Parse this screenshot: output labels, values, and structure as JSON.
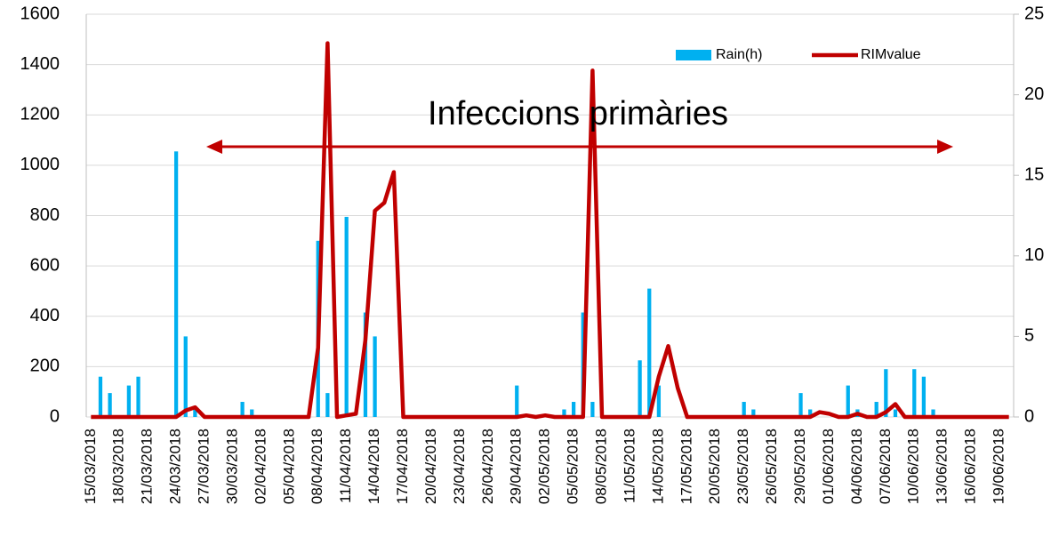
{
  "chart_data": {
    "type": "bar-line",
    "annotation": "Infeccions primàries",
    "categories": [
      "15/03/2018",
      null,
      null,
      "18/03/2018",
      null,
      null,
      "21/03/2018",
      null,
      null,
      "24/03/2018",
      null,
      null,
      "27/03/2018",
      null,
      null,
      "30/03/2018",
      null,
      null,
      "02/04/2018",
      null,
      null,
      "05/04/2018",
      null,
      null,
      "08/04/2018",
      null,
      null,
      "11/04/2018",
      null,
      null,
      "14/04/2018",
      null,
      null,
      "17/04/2018",
      null,
      null,
      "20/04/2018",
      null,
      null,
      "23/04/2018",
      null,
      null,
      "26/04/2018",
      null,
      null,
      "29/04/2018",
      null,
      null,
      "02/05/2018",
      null,
      null,
      "05/05/2018",
      null,
      null,
      "08/05/2018",
      null,
      null,
      "11/05/2018",
      null,
      null,
      "14/05/2018",
      null,
      null,
      "17/05/2018",
      null,
      null,
      "20/05/2018",
      null,
      null,
      "23/05/2018",
      null,
      null,
      "26/05/2018",
      null,
      null,
      "29/05/2018",
      null,
      null,
      "01/06/2018",
      null,
      null,
      "04/06/2018",
      null,
      null,
      "07/06/2018",
      null,
      null,
      "10/06/2018",
      null,
      null,
      "13/06/2018",
      null,
      null,
      "16/06/2018",
      null,
      null,
      "19/06/2018",
      null
    ],
    "series": [
      {
        "name": "Rain(h)",
        "kind": "bar",
        "color": "#00b0f0",
        "values": [
          0,
          160,
          95,
          0,
          125,
          160,
          0,
          0,
          0,
          1055,
          320,
          30,
          0,
          0,
          0,
          0,
          60,
          30,
          0,
          0,
          0,
          0,
          0,
          0,
          700,
          95,
          0,
          795,
          0,
          415,
          320,
          0,
          0,
          0,
          0,
          0,
          0,
          0,
          0,
          0,
          0,
          0,
          0,
          0,
          0,
          125,
          0,
          0,
          0,
          0,
          30,
          60,
          415,
          60,
          0,
          0,
          0,
          0,
          225,
          510,
          125,
          0,
          0,
          0,
          0,
          0,
          0,
          0,
          0,
          60,
          30,
          0,
          0,
          0,
          0,
          95,
          30,
          0,
          0,
          0,
          125,
          30,
          0,
          60,
          190,
          30,
          0,
          190,
          160,
          30,
          0,
          0,
          0,
          0,
          0,
          0,
          0,
          0
        ]
      },
      {
        "name": "RIMvalue",
        "kind": "line",
        "axis": "y2",
        "color": "#c00000",
        "values": [
          0,
          0,
          0,
          0,
          0,
          0,
          0,
          0,
          0,
          0,
          0.4,
          0.6,
          0,
          0,
          0,
          0,
          0,
          0,
          0,
          0,
          0,
          0,
          0,
          0,
          4.3,
          23.2,
          0,
          0.1,
          0.2,
          4.8,
          12.8,
          13.3,
          15.2,
          0,
          0,
          0,
          0,
          0,
          0,
          0,
          0,
          0,
          0,
          0,
          0,
          0,
          0.1,
          0,
          0.1,
          0,
          0,
          0,
          0,
          21.5,
          0,
          0,
          0,
          0,
          0,
          0,
          2.5,
          4.4,
          1.8,
          0,
          0,
          0,
          0,
          0,
          0,
          0,
          0,
          0,
          0,
          0,
          0,
          0,
          0,
          0.3,
          0.2,
          0,
          0,
          0.2,
          0,
          0,
          0.3,
          0.8,
          0,
          0,
          0,
          0,
          0,
          0,
          0,
          0,
          0,
          0,
          0,
          0
        ]
      }
    ],
    "ylim": [
      0,
      1600
    ],
    "yticks": [
      0,
      200,
      400,
      600,
      800,
      1000,
      1200,
      1400,
      1600
    ],
    "y2lim": [
      0,
      25
    ],
    "y2ticks": [
      0,
      5,
      10,
      15,
      20,
      25
    ],
    "grid": true
  }
}
